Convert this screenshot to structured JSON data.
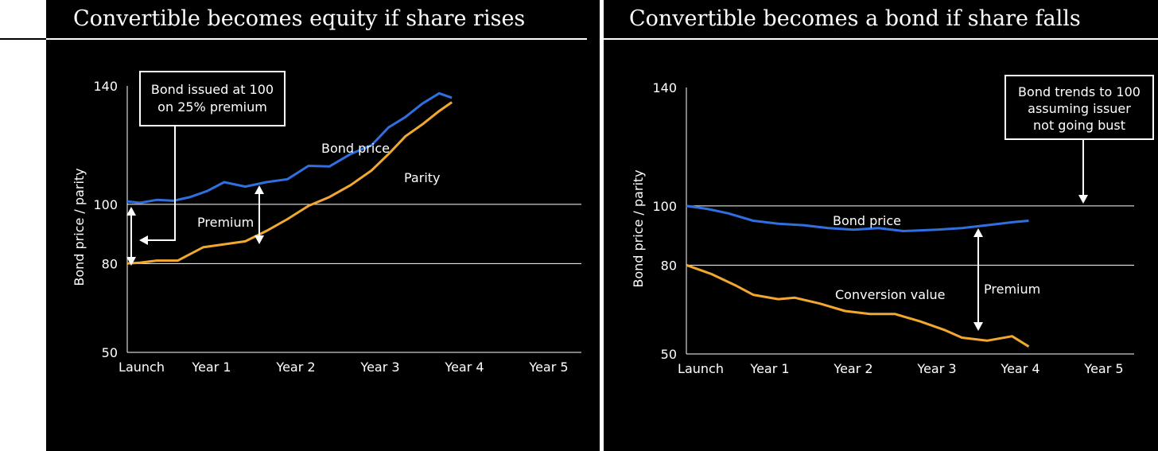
{
  "colors": {
    "background": "#000000",
    "bond": "#2f6fe0",
    "parity": "#f0a830",
    "text": "#ffffff"
  },
  "left": {
    "title": "Convertible becomes equity if share rises"
  },
  "right": {
    "title": "Convertible becomes a bond if share falls"
  },
  "chart_data": [
    {
      "type": "line",
      "title": "Convertible becomes equity if share rises",
      "ylabel": "Bond price / parity",
      "xlabel": "",
      "categories": [
        "Launch",
        "Year 1",
        "Year 2",
        "Year 3",
        "Year 4",
        "Year 5"
      ],
      "ylim": [
        50,
        140
      ],
      "yticks": [
        50,
        80,
        100,
        140
      ],
      "gridlines": [
        80,
        100
      ],
      "series": [
        {
          "name": "Bond price",
          "color": "#2f6fe0",
          "x": [
            0,
            0.15,
            0.35,
            0.55,
            0.75,
            0.95,
            1.15,
            1.4,
            1.65,
            1.9,
            2.15,
            2.4,
            2.65,
            2.9,
            3.1,
            3.3,
            3.5,
            3.7,
            3.85
          ],
          "y": [
            101,
            100.5,
            101.5,
            101.2,
            102.5,
            104.5,
            107.5,
            106,
            107.5,
            108.5,
            113,
            112.8,
            117,
            120,
            126,
            129.5,
            134,
            137.5,
            136
          ]
        },
        {
          "name": "Parity",
          "color": "#f0a830",
          "x": [
            0,
            0.15,
            0.35,
            0.6,
            0.9,
            1.15,
            1.4,
            1.65,
            1.9,
            2.15,
            2.4,
            2.65,
            2.9,
            3.1,
            3.3,
            3.5,
            3.7,
            3.85
          ],
          "y": [
            80,
            80.3,
            81,
            81,
            85.5,
            86.5,
            87.5,
            91,
            95,
            99.5,
            102.5,
            106.5,
            111.5,
            117,
            123,
            127,
            131.5,
            134.5
          ]
        }
      ],
      "annotations": [
        {
          "label": "Bond price"
        },
        {
          "label": "Parity"
        },
        {
          "label": "Premium"
        },
        {
          "lines": [
            "Bond issued at 100",
            "on 25% premium"
          ]
        }
      ]
    },
    {
      "type": "line",
      "title": "Convertible becomes a bond if share falls",
      "ylabel": "Bond price / parity",
      "xlabel": "",
      "categories": [
        "Launch",
        "Year 1",
        "Year 2",
        "Year 3",
        "Year 4",
        "Year 5"
      ],
      "ylim": [
        50,
        140
      ],
      "yticks": [
        50,
        80,
        100,
        140
      ],
      "gridlines": [
        80,
        100
      ],
      "series": [
        {
          "name": "Bond price",
          "color": "#2f6fe0",
          "x": [
            0,
            0.25,
            0.5,
            0.8,
            1.1,
            1.4,
            1.7,
            2.0,
            2.3,
            2.6,
            3.0,
            3.3,
            3.6,
            3.9,
            4.1
          ],
          "y": [
            100,
            99,
            97.5,
            95,
            94,
            93.5,
            92.5,
            92,
            92.5,
            91.5,
            92,
            92.5,
            93.5,
            94.5,
            95
          ]
        },
        {
          "name": "Conversion value",
          "color": "#f0a830",
          "x": [
            0,
            0.3,
            0.6,
            0.8,
            1.1,
            1.3,
            1.6,
            1.9,
            2.2,
            2.5,
            2.8,
            3.1,
            3.3,
            3.6,
            3.9,
            4.1
          ],
          "y": [
            80,
            77,
            73,
            70,
            68.5,
            69,
            67,
            64.5,
            63.5,
            63.5,
            61,
            58,
            55.5,
            54.5,
            56,
            52.5
          ]
        }
      ],
      "annotations": [
        {
          "label": "Bond price"
        },
        {
          "label": "Conversion value"
        },
        {
          "label": "Premium"
        },
        {
          "lines": [
            "Bond trends to 100",
            "assuming issuer",
            "not going bust"
          ]
        }
      ]
    }
  ]
}
